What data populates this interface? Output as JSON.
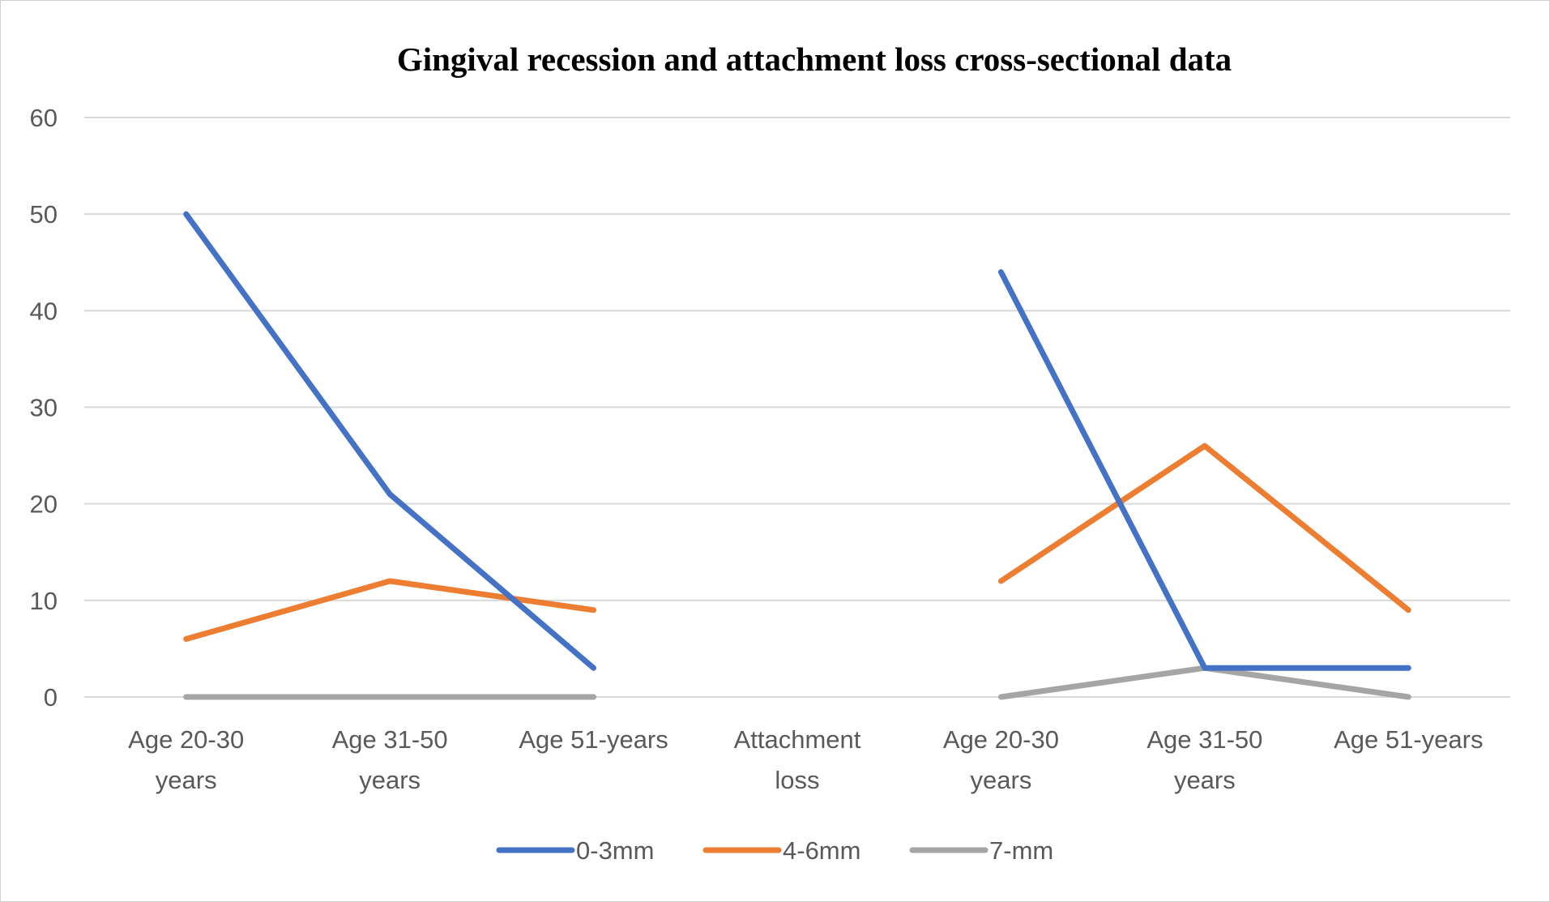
{
  "chart_data": {
    "type": "line",
    "title": "Gingival recession and attachment loss cross-sectional data",
    "xlabel": "",
    "ylabel": "",
    "ylim": [
      0,
      60
    ],
    "yticks": [
      "0",
      "10",
      "20",
      "30",
      "40",
      "50",
      "60"
    ],
    "grid": true,
    "legend_position": "bottom",
    "categories": [
      [
        "Age 20-30",
        "years"
      ],
      [
        "Age 31-50",
        "years"
      ],
      [
        "Age 51-years"
      ],
      [
        "Attachment",
        "loss"
      ],
      [
        "Age 20-30",
        "years"
      ],
      [
        "Age 31-50",
        "years"
      ],
      [
        "Age 51-years"
      ]
    ],
    "series": [
      {
        "name": "0-3mm",
        "color": "#4472C4",
        "values": [
          50,
          21,
          3,
          null,
          44,
          3,
          3
        ]
      },
      {
        "name": "4-6mm",
        "color": "#ED7D31",
        "values": [
          6,
          12,
          9,
          null,
          12,
          26,
          9
        ]
      },
      {
        "name": "7-mm",
        "color": "#A5A5A5",
        "values": [
          0,
          0,
          0,
          null,
          0,
          3,
          0
        ]
      }
    ],
    "gridline_color": "#D9D9D9"
  }
}
